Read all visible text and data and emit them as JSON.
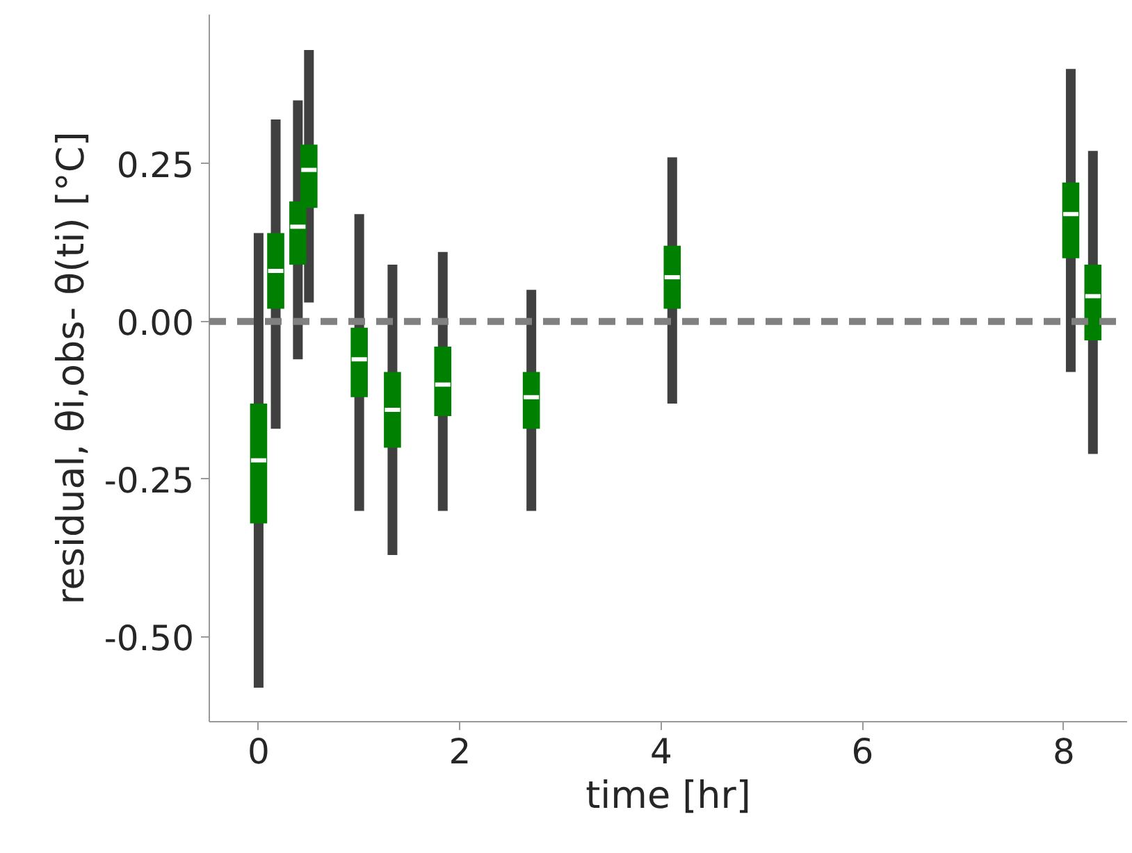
{
  "chart_data": {
    "type": "box",
    "xlabel": "time [hr]",
    "ylabel": "residual, θi,obs- θ(ti) [°C]",
    "x": [
      0,
      0.17,
      0.39,
      0.5,
      1.0,
      1.33,
      1.83,
      2.71,
      4.11,
      8.07,
      8.29
    ],
    "boxes": [
      {
        "low": -0.58,
        "q1": -0.32,
        "median": -0.22,
        "q3": -0.13,
        "high": 0.14
      },
      {
        "low": -0.17,
        "q1": 0.02,
        "median": 0.08,
        "q3": 0.14,
        "high": 0.32
      },
      {
        "low": -0.06,
        "q1": 0.09,
        "median": 0.15,
        "q3": 0.19,
        "high": 0.35
      },
      {
        "low": 0.03,
        "q1": 0.18,
        "median": 0.24,
        "q3": 0.28,
        "high": 0.43
      },
      {
        "low": -0.3,
        "q1": -0.12,
        "median": -0.06,
        "q3": -0.01,
        "high": 0.17
      },
      {
        "low": -0.37,
        "q1": -0.2,
        "median": -0.14,
        "q3": -0.08,
        "high": 0.09
      },
      {
        "low": -0.3,
        "q1": -0.15,
        "median": -0.1,
        "q3": -0.04,
        "high": 0.11
      },
      {
        "low": -0.3,
        "q1": -0.17,
        "median": -0.12,
        "q3": -0.08,
        "high": 0.05
      },
      {
        "low": -0.13,
        "q1": 0.02,
        "median": 0.07,
        "q3": 0.12,
        "high": 0.26
      },
      {
        "low": -0.08,
        "q1": 0.1,
        "median": 0.17,
        "q3": 0.22,
        "high": 0.4
      },
      {
        "low": -0.21,
        "q1": -0.03,
        "median": 0.04,
        "q3": 0.09,
        "high": 0.27
      }
    ],
    "color": "#008000",
    "xlim": [
      -0.49,
      8.63
    ],
    "ylim": [
      -0.634,
      0.486
    ],
    "xticks": [
      0,
      2,
      4,
      6,
      8
    ],
    "yticks": [
      {
        "value": -0.5,
        "label": "-0.50"
      },
      {
        "value": -0.25,
        "label": "-0.25"
      },
      {
        "value": 0,
        "label": "0.00"
      },
      {
        "value": 0.25,
        "label": "0.25"
      }
    ],
    "ref_lines": [
      {
        "axis": "y",
        "value": 0,
        "color": "#808080",
        "line_style": "dashed"
      }
    ],
    "grid": false
  }
}
